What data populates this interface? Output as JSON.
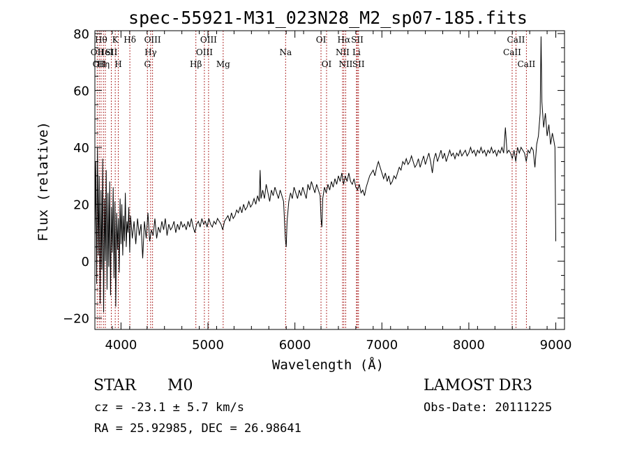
{
  "chart_data": {
    "type": "line",
    "title": "spec-55921-M31_023N28_M2_sp07-185.fits",
    "xlabel": "Wavelength (Å)",
    "ylabel": "Flux (relative)",
    "xlim": [
      3700,
      9100
    ],
    "ylim": [
      -24,
      81
    ],
    "x_ticks": [
      4000,
      5000,
      6000,
      7000,
      8000,
      9000
    ],
    "y_ticks": [
      -20,
      0,
      20,
      40,
      60,
      80
    ],
    "line_color": "#000000",
    "marker_color": "#b03030",
    "spectral_lines": [
      {
        "wave": 3727,
        "label": "OII",
        "row": 1
      },
      {
        "wave": 3750,
        "label": "OII",
        "row": 2
      },
      {
        "wave": 3771,
        "label": "Hθ",
        "row": 0
      },
      {
        "wave": 3798,
        "label": "Hη",
        "row": 2
      },
      {
        "wave": 3820,
        "label": "HeI",
        "row": 1
      },
      {
        "wave": 3889,
        "label": "SII",
        "row": 1
      },
      {
        "wave": 3934,
        "label": "K",
        "row": 0
      },
      {
        "wave": 3969,
        "label": "H",
        "row": 2
      },
      {
        "wave": 4102,
        "label": "Hδ",
        "row": 0
      },
      {
        "wave": 4304,
        "label": "G",
        "row": 2
      },
      {
        "wave": 4341,
        "label": "Hγ",
        "row": 1
      },
      {
        "wave": 4363,
        "label": "OIII",
        "row": 0
      },
      {
        "wave": 4861,
        "label": "Hβ",
        "row": 2
      },
      {
        "wave": 4959,
        "label": "OIII",
        "row": 1
      },
      {
        "wave": 5007,
        "label": "OIII",
        "row": 0
      },
      {
        "wave": 5175,
        "label": "Mg",
        "row": 2
      },
      {
        "wave": 5893,
        "label": "Na",
        "row": 1
      },
      {
        "wave": 6300,
        "label": "OI",
        "row": 0
      },
      {
        "wave": 6364,
        "label": "OI",
        "row": 2
      },
      {
        "wave": 6548,
        "label": "NII",
        "row": 1
      },
      {
        "wave": 6563,
        "label": "Hα",
        "row": 0
      },
      {
        "wave": 6584,
        "label": "NII",
        "row": 2
      },
      {
        "wave": 6708,
        "label": "Li",
        "row": 1
      },
      {
        "wave": 6717,
        "label": "SII",
        "row": 0
      },
      {
        "wave": 6731,
        "label": "SII",
        "row": 2
      },
      {
        "wave": 8498,
        "label": "CaII",
        "row": 1
      },
      {
        "wave": 8542,
        "label": "CaII",
        "row": 0
      },
      {
        "wave": 8662,
        "label": "CaII",
        "row": 2
      }
    ],
    "spectrum": [
      [
        3700,
        8
      ],
      [
        3710,
        35
      ],
      [
        3720,
        -8
      ],
      [
        3730,
        40
      ],
      [
        3740,
        2
      ],
      [
        3750,
        30
      ],
      [
        3760,
        -15
      ],
      [
        3770,
        25
      ],
      [
        3780,
        -3
      ],
      [
        3790,
        36
      ],
      [
        3800,
        -18
      ],
      [
        3810,
        22
      ],
      [
        3820,
        0
      ],
      [
        3830,
        32
      ],
      [
        3840,
        -10
      ],
      [
        3850,
        24
      ],
      [
        3860,
        -2
      ],
      [
        3870,
        28
      ],
      [
        3880,
        -12
      ],
      [
        3890,
        19
      ],
      [
        3900,
        3
      ],
      [
        3910,
        26
      ],
      [
        3920,
        -6
      ],
      [
        3930,
        21
      ],
      [
        3940,
        -16
      ],
      [
        3950,
        17
      ],
      [
        3960,
        4
      ],
      [
        3970,
        15
      ],
      [
        3980,
        -4
      ],
      [
        3990,
        22
      ],
      [
        4000,
        6
      ],
      [
        4010,
        20
      ],
      [
        4020,
        2
      ],
      [
        4030,
        16
      ],
      [
        4040,
        7
      ],
      [
        4050,
        24
      ],
      [
        4060,
        5
      ],
      [
        4070,
        14
      ],
      [
        4080,
        10
      ],
      [
        4090,
        19
      ],
      [
        4100,
        3
      ],
      [
        4110,
        16
      ],
      [
        4130,
        8
      ],
      [
        4150,
        14
      ],
      [
        4170,
        6
      ],
      [
        4190,
        15
      ],
      [
        4210,
        9
      ],
      [
        4230,
        13
      ],
      [
        4250,
        1
      ],
      [
        4270,
        14
      ],
      [
        4290,
        8
      ],
      [
        4310,
        17
      ],
      [
        4330,
        7
      ],
      [
        4350,
        11
      ],
      [
        4370,
        9
      ],
      [
        4390,
        15
      ],
      [
        4410,
        8
      ],
      [
        4430,
        12
      ],
      [
        4450,
        10
      ],
      [
        4470,
        14
      ],
      [
        4490,
        11
      ],
      [
        4510,
        15
      ],
      [
        4530,
        9
      ],
      [
        4550,
        13
      ],
      [
        4570,
        11
      ],
      [
        4590,
        12
      ],
      [
        4610,
        14
      ],
      [
        4630,
        10
      ],
      [
        4650,
        13
      ],
      [
        4670,
        11
      ],
      [
        4690,
        14
      ],
      [
        4710,
        12
      ],
      [
        4730,
        13
      ],
      [
        4750,
        11
      ],
      [
        4770,
        14
      ],
      [
        4790,
        12
      ],
      [
        4810,
        15
      ],
      [
        4830,
        12
      ],
      [
        4850,
        10
      ],
      [
        4870,
        13
      ],
      [
        4890,
        14
      ],
      [
        4910,
        12
      ],
      [
        4930,
        15
      ],
      [
        4950,
        13
      ],
      [
        4970,
        14
      ],
      [
        4990,
        12
      ],
      [
        5010,
        15
      ],
      [
        5030,
        13
      ],
      [
        5050,
        12
      ],
      [
        5070,
        14
      ],
      [
        5090,
        13
      ],
      [
        5110,
        15
      ],
      [
        5130,
        14
      ],
      [
        5150,
        13
      ],
      [
        5170,
        11
      ],
      [
        5190,
        14
      ],
      [
        5210,
        15
      ],
      [
        5230,
        16
      ],
      [
        5250,
        14
      ],
      [
        5270,
        17
      ],
      [
        5290,
        15
      ],
      [
        5310,
        16
      ],
      [
        5330,
        18
      ],
      [
        5350,
        17
      ],
      [
        5370,
        19
      ],
      [
        5390,
        17
      ],
      [
        5410,
        20
      ],
      [
        5430,
        18
      ],
      [
        5450,
        19
      ],
      [
        5470,
        21
      ],
      [
        5490,
        19
      ],
      [
        5510,
        20
      ],
      [
        5530,
        22
      ],
      [
        5550,
        20
      ],
      [
        5570,
        23
      ],
      [
        5590,
        21
      ],
      [
        5600,
        32
      ],
      [
        5610,
        22
      ],
      [
        5630,
        25
      ],
      [
        5650,
        22
      ],
      [
        5670,
        27
      ],
      [
        5690,
        24
      ],
      [
        5710,
        21
      ],
      [
        5730,
        25
      ],
      [
        5750,
        23
      ],
      [
        5770,
        26
      ],
      [
        5790,
        24
      ],
      [
        5810,
        22
      ],
      [
        5830,
        25
      ],
      [
        5850,
        23
      ],
      [
        5870,
        21
      ],
      [
        5890,
        8
      ],
      [
        5900,
        5
      ],
      [
        5910,
        14
      ],
      [
        5930,
        21
      ],
      [
        5950,
        24
      ],
      [
        5970,
        22
      ],
      [
        5990,
        26
      ],
      [
        6010,
        24
      ],
      [
        6030,
        22
      ],
      [
        6050,
        25
      ],
      [
        6070,
        23
      ],
      [
        6090,
        26
      ],
      [
        6110,
        24
      ],
      [
        6130,
        22
      ],
      [
        6150,
        27
      ],
      [
        6170,
        25
      ],
      [
        6190,
        28
      ],
      [
        6210,
        26
      ],
      [
        6230,
        24
      ],
      [
        6250,
        27
      ],
      [
        6270,
        25
      ],
      [
        6290,
        23
      ],
      [
        6300,
        15
      ],
      [
        6310,
        12
      ],
      [
        6320,
        22
      ],
      [
        6340,
        26
      ],
      [
        6360,
        24
      ],
      [
        6380,
        27
      ],
      [
        6400,
        25
      ],
      [
        6420,
        28
      ],
      [
        6440,
        26
      ],
      [
        6460,
        29
      ],
      [
        6480,
        27
      ],
      [
        6500,
        30
      ],
      [
        6520,
        28
      ],
      [
        6540,
        31
      ],
      [
        6560,
        27
      ],
      [
        6580,
        30
      ],
      [
        6600,
        28
      ],
      [
        6620,
        31
      ],
      [
        6640,
        28
      ],
      [
        6660,
        27
      ],
      [
        6680,
        29
      ],
      [
        6700,
        26
      ],
      [
        6720,
        25
      ],
      [
        6740,
        27
      ],
      [
        6760,
        24
      ],
      [
        6780,
        25
      ],
      [
        6800,
        23
      ],
      [
        6820,
        26
      ],
      [
        6840,
        28
      ],
      [
        6860,
        30
      ],
      [
        6880,
        31
      ],
      [
        6900,
        32
      ],
      [
        6920,
        30
      ],
      [
        6940,
        33
      ],
      [
        6960,
        35
      ],
      [
        6980,
        33
      ],
      [
        7000,
        31
      ],
      [
        7020,
        29
      ],
      [
        7040,
        31
      ],
      [
        7060,
        28
      ],
      [
        7080,
        30
      ],
      [
        7100,
        27
      ],
      [
        7120,
        28
      ],
      [
        7140,
        30
      ],
      [
        7160,
        29
      ],
      [
        7180,
        31
      ],
      [
        7200,
        33
      ],
      [
        7220,
        32
      ],
      [
        7240,
        35
      ],
      [
        7260,
        34
      ],
      [
        7280,
        36
      ],
      [
        7300,
        34
      ],
      [
        7320,
        35
      ],
      [
        7340,
        37
      ],
      [
        7360,
        35
      ],
      [
        7380,
        33
      ],
      [
        7400,
        34
      ],
      [
        7420,
        36
      ],
      [
        7440,
        33
      ],
      [
        7460,
        35
      ],
      [
        7480,
        37
      ],
      [
        7500,
        34
      ],
      [
        7520,
        36
      ],
      [
        7540,
        38
      ],
      [
        7560,
        35
      ],
      [
        7580,
        31
      ],
      [
        7600,
        36
      ],
      [
        7620,
        38
      ],
      [
        7640,
        35
      ],
      [
        7660,
        37
      ],
      [
        7680,
        39
      ],
      [
        7700,
        36
      ],
      [
        7720,
        38
      ],
      [
        7740,
        35
      ],
      [
        7760,
        37
      ],
      [
        7780,
        39
      ],
      [
        7800,
        37
      ],
      [
        7820,
        38
      ],
      [
        7840,
        36
      ],
      [
        7860,
        38
      ],
      [
        7880,
        37
      ],
      [
        7900,
        39
      ],
      [
        7920,
        37
      ],
      [
        7940,
        38
      ],
      [
        7960,
        39
      ],
      [
        7980,
        37
      ],
      [
        8000,
        38
      ],
      [
        8020,
        40
      ],
      [
        8040,
        38
      ],
      [
        8060,
        39
      ],
      [
        8080,
        37
      ],
      [
        8100,
        39
      ],
      [
        8120,
        38
      ],
      [
        8140,
        40
      ],
      [
        8160,
        38
      ],
      [
        8180,
        39
      ],
      [
        8200,
        37
      ],
      [
        8220,
        39
      ],
      [
        8240,
        38
      ],
      [
        8260,
        40
      ],
      [
        8280,
        38
      ],
      [
        8300,
        39
      ],
      [
        8320,
        37
      ],
      [
        8340,
        39
      ],
      [
        8360,
        38
      ],
      [
        8380,
        40
      ],
      [
        8400,
        38
      ],
      [
        8420,
        47
      ],
      [
        8440,
        38
      ],
      [
        8460,
        39
      ],
      [
        8480,
        38
      ],
      [
        8500,
        36
      ],
      [
        8520,
        39
      ],
      [
        8540,
        35
      ],
      [
        8560,
        40
      ],
      [
        8580,
        38
      ],
      [
        8600,
        40
      ],
      [
        8620,
        39
      ],
      [
        8640,
        38
      ],
      [
        8660,
        35
      ],
      [
        8680,
        39
      ],
      [
        8700,
        38
      ],
      [
        8720,
        40
      ],
      [
        8740,
        39
      ],
      [
        8760,
        33
      ],
      [
        8780,
        41
      ],
      [
        8800,
        44
      ],
      [
        8820,
        52
      ],
      [
        8830,
        79
      ],
      [
        8840,
        56
      ],
      [
        8860,
        47
      ],
      [
        8880,
        52
      ],
      [
        8900,
        44
      ],
      [
        8920,
        48
      ],
      [
        8940,
        41
      ],
      [
        8960,
        45
      ],
      [
        8980,
        42
      ],
      [
        8990,
        40
      ],
      [
        9000,
        7
      ]
    ]
  },
  "info": {
    "object_class": "STAR",
    "subclass": "M0",
    "velocity": "cz = -23.1 ± 5.7 km/s",
    "coords": "RA =  25.92985, DEC =  26.98641",
    "survey": "LAMOST DR3",
    "obs_date": "Obs-Date: 20111225"
  }
}
